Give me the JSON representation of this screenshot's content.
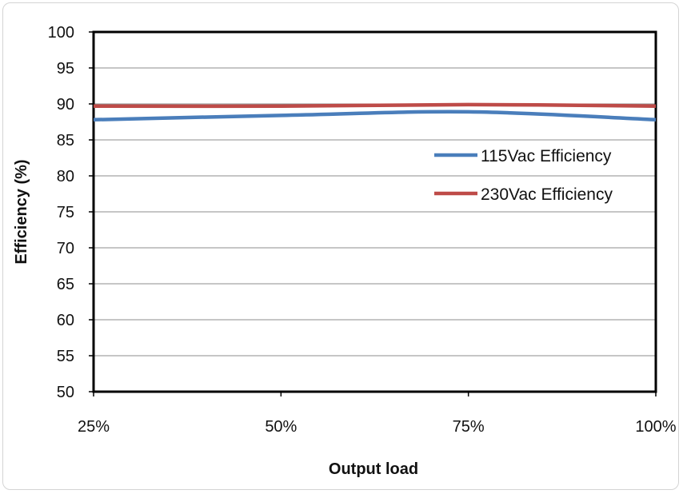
{
  "chart_data": {
    "type": "line",
    "title": "",
    "xlabel": "Output load",
    "ylabel": "Efficiency (%)",
    "categories": [
      "25%",
      "50%",
      "75%",
      "100%"
    ],
    "ylim": [
      50,
      100
    ],
    "yticks": [
      "50",
      "55",
      "60",
      "65",
      "70",
      "75",
      "80",
      "85",
      "90",
      "95",
      "100"
    ],
    "grid": true,
    "legend_position": "right",
    "series": [
      {
        "name": "115Vac Efficiency",
        "color": "#4a7ebb",
        "values": [
          87.8,
          88.4,
          88.9,
          87.8
        ]
      },
      {
        "name": "230Vac Efficiency",
        "color": "#be4b48",
        "values": [
          89.7,
          89.7,
          89.9,
          89.7
        ]
      }
    ]
  }
}
